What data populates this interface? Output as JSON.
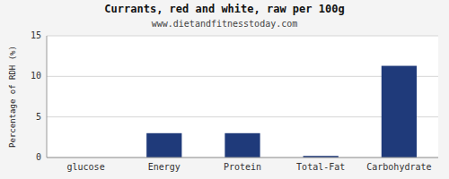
{
  "chart_data": {
    "type": "bar",
    "title": "Currants, red and white, raw per 100g",
    "subtitle": "www.dietandfitnesstoday.com",
    "categories": [
      "glucose",
      "Energy",
      "Protein",
      "Total-Fat",
      "Carbohydrate"
    ],
    "values": [
      0,
      3.0,
      3.0,
      0.2,
      11.3
    ],
    "color": "#1f3a7a",
    "ylabel": "Percentage of RDH (%)",
    "ylim": [
      0,
      15
    ],
    "yticks": [
      0,
      5,
      10,
      15
    ],
    "grid": true
  }
}
